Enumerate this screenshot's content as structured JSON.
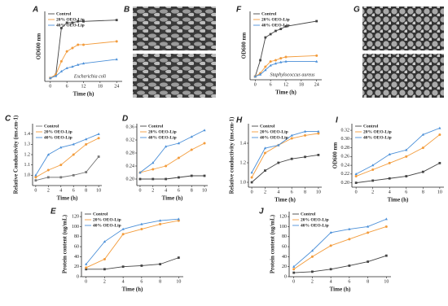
{
  "image_panels": [
    "B",
    "G"
  ],
  "chart_data": [
    {
      "type": "line",
      "panel": "A",
      "xlabel": "Time (h)",
      "ylabel": "OD600 nm",
      "annotation": "Escherichia coli",
      "x": [
        0,
        2,
        4,
        6,
        8,
        10,
        12,
        24
      ],
      "xlim": [
        -2,
        26
      ],
      "xticks": [
        0,
        6,
        12,
        18,
        24
      ],
      "ylim": [
        0,
        1.05
      ],
      "series": [
        {
          "name": "Control",
          "color": "#444444",
          "values": [
            0.05,
            0.1,
            0.8,
            0.88,
            0.88,
            0.9,
            0.9,
            0.92
          ]
        },
        {
          "name": "20% OEO-Lip",
          "color": "#f39c3c",
          "values": [
            0.05,
            0.1,
            0.3,
            0.45,
            0.5,
            0.55,
            0.55,
            0.6
          ]
        },
        {
          "name": "40% OEO-Lip",
          "color": "#4a8fd8",
          "values": [
            0.05,
            0.08,
            0.15,
            0.2,
            0.22,
            0.25,
            0.27,
            0.33
          ]
        }
      ]
    },
    {
      "type": "line",
      "panel": "F",
      "xlabel": "Time (h)",
      "ylabel": "OD600 nm",
      "annotation": "Staphylococcus aureus",
      "x": [
        0,
        2,
        4,
        6,
        8,
        10,
        12,
        24
      ],
      "xlim": [
        -2,
        26
      ],
      "xticks": [
        0,
        6,
        12,
        18,
        24
      ],
      "ylim": [
        0,
        1.05
      ],
      "series": [
        {
          "name": "Control",
          "color": "#444444",
          "values": [
            0.05,
            0.3,
            0.65,
            0.7,
            0.75,
            0.78,
            0.82,
            0.9
          ]
        },
        {
          "name": "20% OEO-Lip",
          "color": "#f39c3c",
          "values": [
            0.05,
            0.1,
            0.2,
            0.28,
            0.3,
            0.33,
            0.35,
            0.37
          ]
        },
        {
          "name": "40% OEO-Lip",
          "color": "#4a8fd8",
          "values": [
            0.05,
            0.08,
            0.15,
            0.22,
            0.25,
            0.27,
            0.28,
            0.28
          ]
        }
      ]
    },
    {
      "type": "line",
      "panel": "C",
      "xlabel": "Time (h)",
      "ylabel": "Relative Conductivity (ms.cm-1)",
      "x": [
        0,
        2,
        4,
        6,
        8,
        10
      ],
      "xlim": [
        -0.5,
        10.5
      ],
      "xticks": [
        0,
        2,
        4,
        6,
        8,
        10
      ],
      "ylim": [
        0.9,
        1.5
      ],
      "yticks": [
        {
          "value": 1,
          "label": "1.0"
        },
        1.1,
        1.2,
        1.3,
        1.4
      ],
      "series": [
        {
          "name": "Control",
          "color": "#777777",
          "values": [
            0.95,
            0.98,
            0.98,
            1.0,
            1.03,
            1.18
          ]
        },
        {
          "name": "20% OEO-Lip",
          "color": "#f39c3c",
          "values": [
            0.98,
            1.05,
            1.1,
            1.2,
            1.3,
            1.36
          ]
        },
        {
          "name": "40% OEO-Lip",
          "color": "#4a8fd8",
          "values": [
            1.0,
            1.2,
            1.27,
            1.3,
            1.35,
            1.4
          ]
        }
      ]
    },
    {
      "type": "line",
      "panel": "D",
      "xlabel": "Time (h)",
      "x": [
        0,
        2,
        4,
        6,
        8,
        10
      ],
      "xlim": [
        -0.5,
        10.5
      ],
      "xticks": [
        0,
        2,
        4,
        6,
        8,
        10
      ],
      "ylim": [
        0.18,
        0.37
      ],
      "yticks": [
        {
          "value": 0.2,
          "label": "0.20"
        },
        0.24,
        0.28,
        0.32,
        0.36
      ],
      "series": [
        {
          "name": "Control",
          "color": "#444444",
          "values": [
            0.2,
            0.2,
            0.2,
            0.205,
            0.21,
            0.21
          ]
        },
        {
          "name": "20% OEO-Lip",
          "color": "#f39c3c",
          "values": [
            0.22,
            0.23,
            0.24,
            0.265,
            0.29,
            0.31
          ]
        },
        {
          "name": "40% OEO-Lip",
          "color": "#4a8fd8",
          "values": [
            0.22,
            0.25,
            0.3,
            0.31,
            0.33,
            0.35
          ]
        }
      ]
    },
    {
      "type": "line",
      "panel": "H",
      "xlabel": "Time (h)",
      "ylabel": "Relative conductivity (ms.cm-1)",
      "x": [
        0,
        2,
        4,
        6,
        8,
        10
      ],
      "xlim": [
        -0.5,
        10.5
      ],
      "xticks": [
        0,
        2,
        4,
        6,
        8,
        10
      ],
      "ylim": [
        0.95,
        1.6
      ],
      "yticks": [
        {
          "value": 1,
          "label": "1.0"
        },
        1.2,
        1.4
      ],
      "series": [
        {
          "name": "Control",
          "color": "#444444",
          "values": [
            1.0,
            1.12,
            1.2,
            1.24,
            1.26,
            1.28
          ]
        },
        {
          "name": "20% OEO-Lip",
          "color": "#f39c3c",
          "values": [
            1.05,
            1.3,
            1.38,
            1.45,
            1.48,
            1.5
          ]
        },
        {
          "name": "40% OEO-Lip",
          "color": "#4a8fd8",
          "values": [
            1.1,
            1.35,
            1.38,
            1.48,
            1.52,
            1.52
          ]
        }
      ]
    },
    {
      "type": "line",
      "panel": "I",
      "xlabel": "Time (h)",
      "ylabel": "OD600 nm",
      "x": [
        0,
        2,
        4,
        6,
        8,
        10
      ],
      "xlim": [
        -0.5,
        10.5
      ],
      "xticks": [
        0,
        2,
        4,
        6,
        8,
        10
      ],
      "ylim": [
        0.19,
        0.335
      ],
      "yticks": [
        {
          "value": 0.2,
          "label": "0.20"
        },
        0.22,
        0.24,
        0.26,
        0.28,
        {
          "value": 0.3,
          "label": "0.30"
        },
        0.32
      ],
      "series": [
        {
          "name": "Control",
          "color": "#444444",
          "values": [
            0.2,
            0.205,
            0.21,
            0.215,
            0.225,
            0.245
          ]
        },
        {
          "name": "20% OEO-Lip",
          "color": "#f39c3c",
          "values": [
            0.215,
            0.23,
            0.245,
            0.26,
            0.28,
            0.31
          ]
        },
        {
          "name": "40% OEO-Lip",
          "color": "#4a8fd8",
          "values": [
            0.22,
            0.24,
            0.265,
            0.275,
            0.31,
            0.325
          ]
        }
      ]
    },
    {
      "type": "line",
      "panel": "E",
      "xlabel": "Time (h)",
      "ylabel": "Protein content (ug/mL)",
      "x": [
        0,
        2,
        4,
        6,
        8,
        10
      ],
      "xlim": [
        -0.5,
        10.5
      ],
      "xticks": [
        0,
        2,
        4,
        6,
        8,
        10
      ],
      "ylim": [
        0,
        130
      ],
      "yticks": [
        0,
        20,
        40,
        60,
        80,
        100,
        120
      ],
      "series": [
        {
          "name": "Control",
          "color": "#444444",
          "values": [
            15,
            15,
            20,
            22,
            25,
            38
          ]
        },
        {
          "name": "20% OEO-Lip",
          "color": "#f39c3c",
          "values": [
            18,
            35,
            85,
            95,
            105,
            112
          ]
        },
        {
          "name": "40% OEO-Lip",
          "color": "#4a8fd8",
          "values": [
            25,
            70,
            95,
            105,
            112,
            115
          ]
        }
      ]
    },
    {
      "type": "line",
      "panel": "J",
      "xlabel": "Time (h)",
      "ylabel": "Protein content (ug/mL)",
      "x": [
        0,
        2,
        4,
        6,
        8,
        10
      ],
      "xlim": [
        -0.5,
        10.5
      ],
      "xticks": [
        0,
        2,
        4,
        6,
        8,
        10
      ],
      "ylim": [
        0,
        130
      ],
      "yticks": [
        0,
        20,
        40,
        60,
        80,
        100,
        120
      ],
      "series": [
        {
          "name": "Control",
          "color": "#444444",
          "values": [
            8,
            10,
            15,
            22,
            30,
            42
          ]
        },
        {
          "name": "20% OEO-Lip",
          "color": "#f39c3c",
          "values": [
            15,
            40,
            62,
            75,
            88,
            100
          ]
        },
        {
          "name": "40% OEO-Lip",
          "color": "#4a8fd8",
          "values": [
            20,
            52,
            88,
            95,
            100,
            115
          ]
        }
      ]
    }
  ]
}
